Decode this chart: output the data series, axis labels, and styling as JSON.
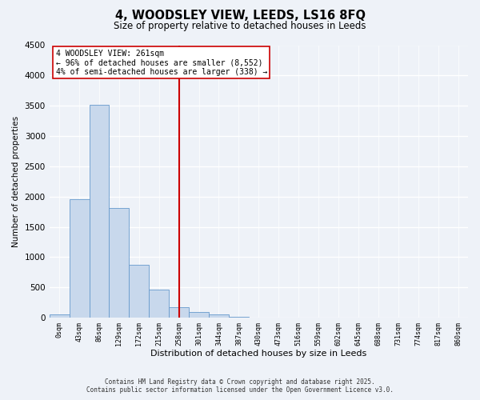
{
  "title": "4, WOODSLEY VIEW, LEEDS, LS16 8FQ",
  "subtitle": "Size of property relative to detached houses in Leeds",
  "xlabel": "Distribution of detached houses by size in Leeds",
  "ylabel": "Number of detached properties",
  "bar_labels": [
    "0sqm",
    "43sqm",
    "86sqm",
    "129sqm",
    "172sqm",
    "215sqm",
    "258sqm",
    "301sqm",
    "344sqm",
    "387sqm",
    "430sqm",
    "473sqm",
    "516sqm",
    "559sqm",
    "602sqm",
    "645sqm",
    "688sqm",
    "731sqm",
    "774sqm",
    "817sqm",
    "860sqm"
  ],
  "bar_heights": [
    50,
    1950,
    3520,
    1810,
    870,
    460,
    175,
    95,
    50,
    20,
    0,
    0,
    0,
    0,
    0,
    0,
    0,
    0,
    0,
    0,
    0
  ],
  "bar_color": "#c8d8ec",
  "bar_edge_color": "#6699cc",
  "vline_x": 6,
  "vline_color": "#cc0000",
  "annotation_title": "4 WOODSLEY VIEW: 261sqm",
  "annotation_line1": "← 96% of detached houses are smaller (8,552)",
  "annotation_line2": "4% of semi-detached houses are larger (338) →",
  "annotation_box_color": "#ffffff",
  "annotation_box_edge": "#cc0000",
  "ylim": [
    0,
    4500
  ],
  "yticks": [
    0,
    500,
    1000,
    1500,
    2000,
    2500,
    3000,
    3500,
    4000,
    4500
  ],
  "footer_line1": "Contains HM Land Registry data © Crown copyright and database right 2025.",
  "footer_line2": "Contains public sector information licensed under the Open Government Licence v3.0.",
  "bg_color": "#eef2f8"
}
